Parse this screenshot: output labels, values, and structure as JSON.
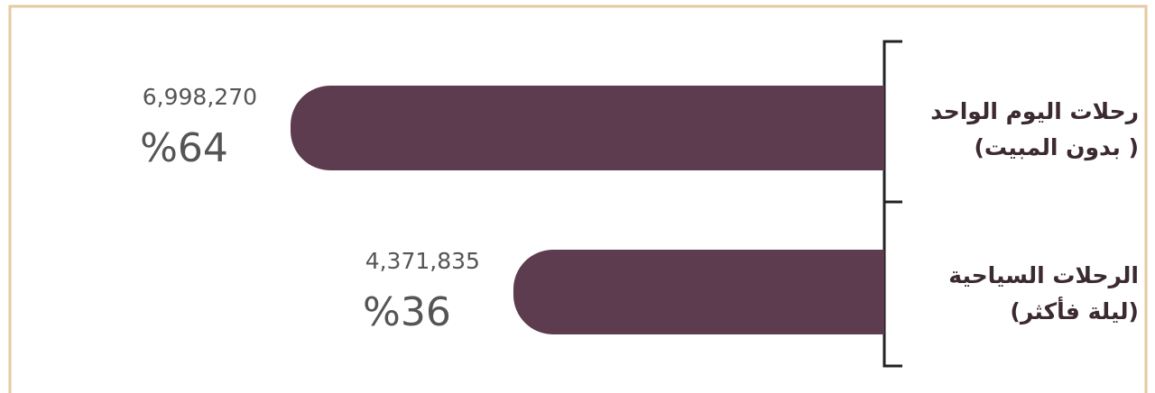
{
  "chart_data": {
    "type": "bar",
    "orientation": "horizontal",
    "categories": [
      [
        "رحلات اليوم الواحد",
        "( بدون المبيت)"
      ],
      [
        "الرحلات السياحية",
        "(ليلة فأكثر)"
      ]
    ],
    "values": [
      6998270,
      4371835
    ],
    "value_labels": [
      "6,998,270",
      "4,371,835"
    ],
    "percent_values": [
      64,
      36
    ],
    "percent_labels": [
      "%64",
      "%36"
    ],
    "color": "#5c3c4e"
  }
}
